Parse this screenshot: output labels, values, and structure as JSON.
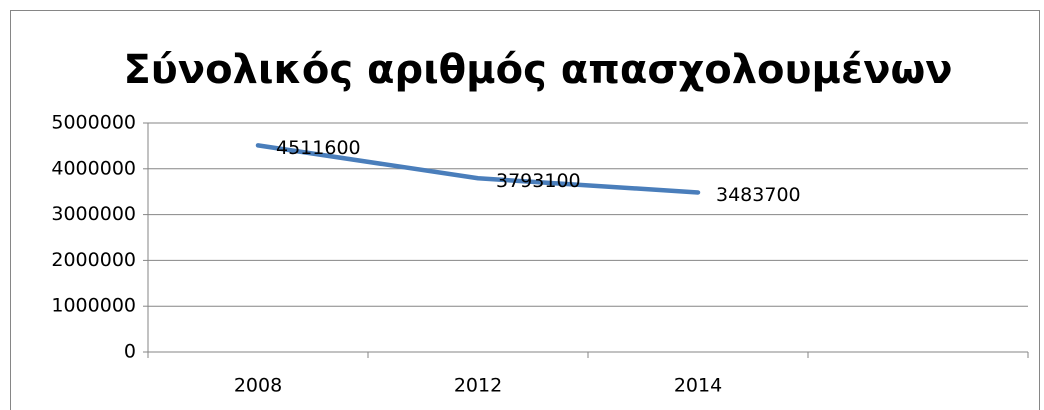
{
  "chart_data": {
    "type": "line",
    "title": "Σύνολικός αριθμός απασχολουμένων",
    "categories": [
      "2008",
      "2012",
      "2014",
      null
    ],
    "series": [
      {
        "name": null,
        "color": "#4a7ebb",
        "values": [
          4511600,
          3793100,
          3483700,
          null
        ]
      }
    ],
    "ylim": [
      0,
      5000000
    ],
    "yticks": [
      0,
      1000000,
      2000000,
      3000000,
      4000000,
      5000000
    ],
    "grid": true,
    "data_labels": true
  }
}
